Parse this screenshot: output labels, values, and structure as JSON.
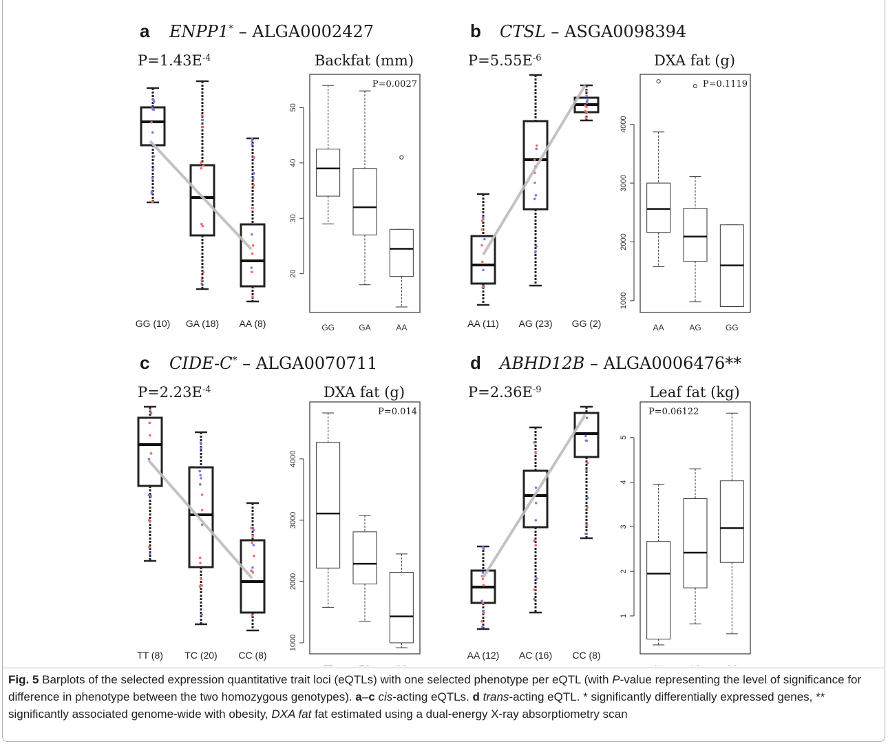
{
  "panels": [
    {
      "letter": "a",
      "gene": "ENPP1",
      "gene_mark": "*",
      "snp": "ALGA0002427",
      "eqtl_p": "P=1.43E",
      "eqtl_p_exp": "-4",
      "trend": "down",
      "eqtl_groups": [
        "GG (10)",
        "GA (18)",
        "AA (8)"
      ],
      "phenotype": "Backfat (mm)",
      "pheno_p": "P=0.0027"
    },
    {
      "letter": "b",
      "gene": "CTSL",
      "gene_mark": "",
      "snp": "ASGA0098394",
      "eqtl_p": "P=5.55E",
      "eqtl_p_exp": "-6",
      "trend": "up",
      "eqtl_groups": [
        "AA (11)",
        "AG (23)",
        "GG (2)"
      ],
      "phenotype": "DXA fat (g)",
      "pheno_p": "P=0.1119"
    },
    {
      "letter": "c",
      "gene": "CIDE-C",
      "gene_mark": "*",
      "snp": "ALGA0070711",
      "eqtl_p": "P=2.23E",
      "eqtl_p_exp": "-4",
      "trend": "down",
      "eqtl_groups": [
        "TT (8)",
        "TC (20)",
        "CC (8)"
      ],
      "phenotype": "DXA fat (g)",
      "pheno_p": "P=0.014"
    },
    {
      "letter": "d",
      "gene": "ABHD12B",
      "gene_mark": "",
      "snp": "ALGA0006476**",
      "eqtl_p": "P=2.36E",
      "eqtl_p_exp": "-9",
      "trend": "up",
      "eqtl_groups": [
        "AA (12)",
        "AC (16)",
        "CC (8)"
      ],
      "phenotype": "Leaf fat (kg)",
      "pheno_p": "P=0.06122"
    }
  ],
  "chart_data": [
    {
      "type": "boxplot",
      "panel": "a",
      "title": "Backfat (mm)",
      "categories": [
        "GG",
        "GA",
        "AA"
      ],
      "ylim": [
        13,
        56
      ],
      "yticks": [
        20,
        30,
        40,
        50
      ],
      "boxes": [
        {
          "min": 29,
          "q1": 34,
          "median": 39,
          "q3": 42.5,
          "max": 54,
          "outliers": []
        },
        {
          "min": 18,
          "q1": 27,
          "median": 32,
          "q3": 39,
          "max": 53,
          "outliers": []
        },
        {
          "min": 14,
          "q1": 19.5,
          "median": 24.5,
          "q3": 28,
          "max": 28,
          "outliers": [
            41
          ]
        }
      ],
      "annotation": "P=0.0027"
    },
    {
      "type": "boxplot",
      "panel": "b",
      "title": "DXA fat (g)",
      "categories": [
        "AA",
        "AG",
        "GG"
      ],
      "ylim": [
        800,
        4850
      ],
      "yticks": [
        1000,
        2000,
        3000,
        4000
      ],
      "boxes": [
        {
          "min": 1580,
          "q1": 2160,
          "median": 2560,
          "q3": 3000,
          "max": 3870,
          "outliers": [
            4730
          ]
        },
        {
          "min": 980,
          "q1": 1670,
          "median": 2090,
          "q3": 2570,
          "max": 3110,
          "outliers": [
            4650
          ]
        },
        {
          "min": 900,
          "q1": 900,
          "median": 1600,
          "q3": 2290,
          "max": 2290,
          "outliers": []
        }
      ],
      "annotation": "P=0.1119"
    },
    {
      "type": "boxplot",
      "panel": "c",
      "title": "DXA fat (g)",
      "categories": [
        "TT",
        "TC",
        "CC"
      ],
      "ylim": [
        820,
        4930
      ],
      "yticks": [
        1000,
        2000,
        3000,
        4000
      ],
      "boxes": [
        {
          "min": 1580,
          "q1": 2220,
          "median": 3110,
          "q3": 4270,
          "max": 4750,
          "outliers": []
        },
        {
          "min": 1350,
          "q1": 1960,
          "median": 2290,
          "q3": 2810,
          "max": 3080,
          "outliers": []
        },
        {
          "min": 920,
          "q1": 1000,
          "median": 1430,
          "q3": 2150,
          "max": 2450,
          "outliers": []
        }
      ],
      "annotation": "P=0.014"
    },
    {
      "type": "boxplot",
      "panel": "d",
      "title": "Leaf fat (kg)",
      "categories": [
        "AA",
        "AC",
        "CC"
      ],
      "ylim": [
        0.15,
        5.8
      ],
      "yticks": [
        1,
        2,
        3,
        4,
        5
      ],
      "boxes": [
        {
          "min": 0.35,
          "q1": 0.48,
          "median": 1.95,
          "q3": 2.67,
          "max": 3.95,
          "outliers": []
        },
        {
          "min": 0.82,
          "q1": 1.63,
          "median": 2.42,
          "q3": 3.63,
          "max": 4.3,
          "outliers": []
        },
        {
          "min": 0.6,
          "q1": 2.2,
          "median": 2.97,
          "q3": 4.03,
          "max": 5.55,
          "outliers": []
        }
      ],
      "annotation": "P=0.06122"
    }
  ],
  "caption": {
    "fig_label": "Fig. 5",
    "text1": " Barplots of the selected expression quantitative trait loci (eQTLs) with one selected phenotype per eQTL (with ",
    "p_italic": "P",
    "text2": "-value representing the level of significance for difference in phenotype between the two homozygous genotypes). ",
    "range_a": "a",
    "range_dash": "–",
    "range_c": "c",
    "cis": "cis",
    "text3": "-acting eQTLs. ",
    "d_label": "d",
    "trans": "trans",
    "text4": "-acting eQTL. * significantly differentially expressed genes, ** significantly associated genome-wide with obesity, ",
    "dxa_italic": "DXA fat",
    "text5": " fat estimated using a dual-energy X-ray absorptiometry scan"
  }
}
